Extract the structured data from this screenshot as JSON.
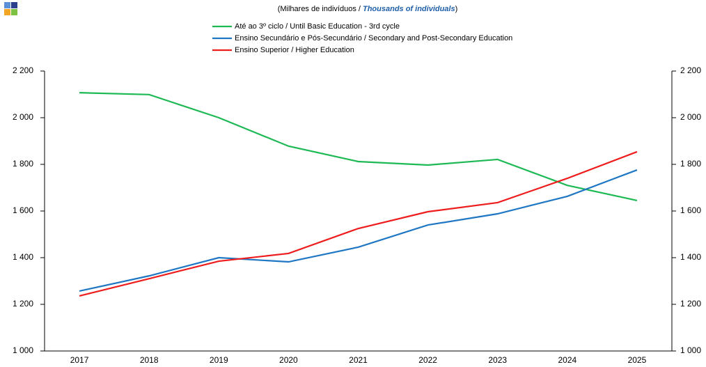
{
  "chart_data": {
    "type": "line",
    "subtitle_parts": [
      "(Milhares de indivíduos / ",
      "Thousands of individuals",
      ")"
    ],
    "categories": [
      "2017",
      "2018",
      "2019",
      "2020",
      "2021",
      "2022",
      "2023",
      "2024",
      "2025"
    ],
    "series": [
      {
        "name": "Até ao 3º ciclo / Until Basic Education - 3rd cycle",
        "color": "#1db954",
        "values": [
          2107,
          2099,
          2000,
          1878,
          1812,
          1797,
          1821,
          1710,
          1645
        ]
      },
      {
        "name": "Ensino Secundário e Pós-Secundário / Secondary and Post-Secondary Education",
        "color": "#1f77c4",
        "values": [
          1257,
          1322,
          1400,
          1382,
          1445,
          1540,
          1588,
          1663,
          1776
        ]
      },
      {
        "name": "Ensino Superior / Higher Education",
        "color": "#ee1c1c",
        "values": [
          1236,
          1310,
          1385,
          1418,
          1525,
          1597,
          1636,
          1740,
          1854
        ]
      }
    ],
    "ylim": [
      1000,
      2200
    ],
    "yticks": [
      {
        "value": 1000,
        "label": "1 000"
      },
      {
        "value": 1200,
        "label": "1 200"
      },
      {
        "value": 1400,
        "label": "1 400"
      },
      {
        "value": 1600,
        "label": "1 600"
      },
      {
        "value": 1800,
        "label": "1 800"
      },
      {
        "value": 2000,
        "label": "2 000"
      },
      {
        "value": 2200,
        "label": "2 200"
      }
    ],
    "y2lim": [
      1000,
      2200
    ],
    "y2ticks": [
      {
        "value": 1000,
        "label": "1 000"
      },
      {
        "value": 1200,
        "label": "1 200"
      },
      {
        "value": 1400,
        "label": "1 400"
      },
      {
        "value": 1600,
        "label": "1 600"
      },
      {
        "value": 1800,
        "label": "1 800"
      },
      {
        "value": 2000,
        "label": "2 000"
      },
      {
        "value": 2200,
        "label": "2 200"
      }
    ],
    "grid": false
  }
}
